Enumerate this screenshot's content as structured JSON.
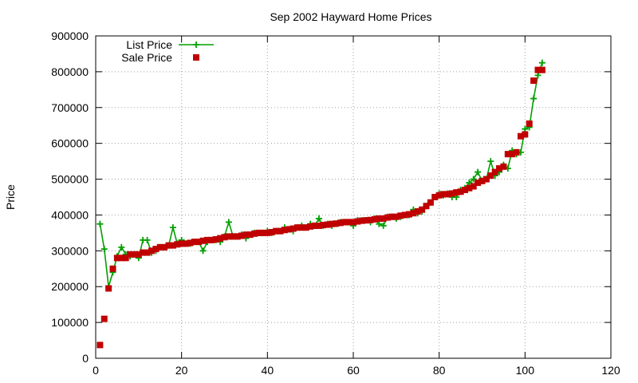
{
  "chart_data": {
    "type": "line",
    "title": "Sep 2002 Hayward Home Prices",
    "xlabel": "",
    "ylabel": "Price",
    "xlim": [
      0,
      120
    ],
    "ylim": [
      0,
      900000
    ],
    "x_ticks": [
      "0",
      "20",
      "40",
      "60",
      "80",
      "100",
      "120"
    ],
    "y_ticks": [
      "0",
      "100000",
      "200000",
      "300000",
      "400000",
      "500000",
      "600000",
      "700000",
      "800000",
      "900000"
    ],
    "grid": true,
    "legend_position": "top-left",
    "x": [
      1,
      2,
      3,
      4,
      5,
      6,
      7,
      8,
      9,
      10,
      11,
      12,
      13,
      14,
      15,
      16,
      17,
      18,
      19,
      20,
      21,
      22,
      23,
      24,
      25,
      26,
      27,
      28,
      29,
      30,
      31,
      32,
      33,
      34,
      35,
      36,
      37,
      38,
      39,
      40,
      41,
      42,
      43,
      44,
      45,
      46,
      47,
      48,
      49,
      50,
      51,
      52,
      53,
      54,
      55,
      56,
      57,
      58,
      59,
      60,
      61,
      62,
      63,
      64,
      65,
      66,
      67,
      68,
      69,
      70,
      71,
      72,
      73,
      74,
      75,
      76,
      77,
      78,
      79,
      80,
      81,
      82,
      83,
      84,
      85,
      86,
      87,
      88,
      89,
      90,
      91,
      92,
      93,
      94,
      95,
      96,
      97,
      98,
      99,
      100,
      101,
      102,
      103,
      104
    ],
    "series": [
      {
        "name": "List Price",
        "style": "line+cross",
        "color": "#00a000",
        "values": [
          375000,
          305000,
          200000,
          240000,
          285000,
          310000,
          290000,
          285000,
          290000,
          280000,
          330000,
          330000,
          295000,
          300000,
          310000,
          310000,
          315000,
          365000,
          320000,
          330000,
          320000,
          320000,
          325000,
          325000,
          300000,
          325000,
          330000,
          330000,
          325000,
          340000,
          380000,
          340000,
          340000,
          345000,
          335000,
          345000,
          350000,
          350000,
          350000,
          355000,
          350000,
          355000,
          355000,
          365000,
          360000,
          355000,
          365000,
          370000,
          365000,
          375000,
          370000,
          390000,
          370000,
          375000,
          370000,
          375000,
          380000,
          380000,
          380000,
          370000,
          385000,
          385000,
          385000,
          380000,
          390000,
          375000,
          370000,
          395000,
          395000,
          390000,
          395000,
          400000,
          400000,
          415000,
          405000,
          410000,
          425000,
          435000,
          450000,
          460000,
          455000,
          460000,
          450000,
          450000,
          470000,
          475000,
          490000,
          500000,
          520000,
          495000,
          500000,
          550000,
          510000,
          520000,
          540000,
          530000,
          580000,
          570000,
          575000,
          640000,
          645000,
          725000,
          790000,
          825000
        ]
      },
      {
        "name": "Sale Price",
        "style": "square",
        "color": "#c00000",
        "values": [
          37000,
          110000,
          195000,
          250000,
          280000,
          280000,
          280000,
          290000,
          290000,
          290000,
          295000,
          295000,
          300000,
          305000,
          310000,
          310000,
          315000,
          315000,
          318000,
          320000,
          320000,
          322000,
          325000,
          325000,
          328000,
          330000,
          330000,
          332000,
          335000,
          338000,
          340000,
          340000,
          340000,
          342000,
          345000,
          345000,
          348000,
          350000,
          350000,
          350000,
          352000,
          355000,
          355000,
          358000,
          360000,
          362000,
          365000,
          365000,
          365000,
          368000,
          370000,
          370000,
          372000,
          373000,
          375000,
          376000,
          378000,
          380000,
          380000,
          380000,
          382000,
          384000,
          385000,
          386000,
          388000,
          390000,
          390000,
          393000,
          395000,
          395000,
          398000,
          400000,
          402000,
          405000,
          410000,
          415000,
          425000,
          435000,
          450000,
          455000,
          458000,
          458000,
          460000,
          463000,
          465000,
          470000,
          475000,
          480000,
          490000,
          495000,
          500000,
          510000,
          520000,
          530000,
          535000,
          570000,
          570000,
          575000,
          620000,
          625000,
          655000,
          775000,
          805000,
          805000
        ]
      }
    ]
  }
}
